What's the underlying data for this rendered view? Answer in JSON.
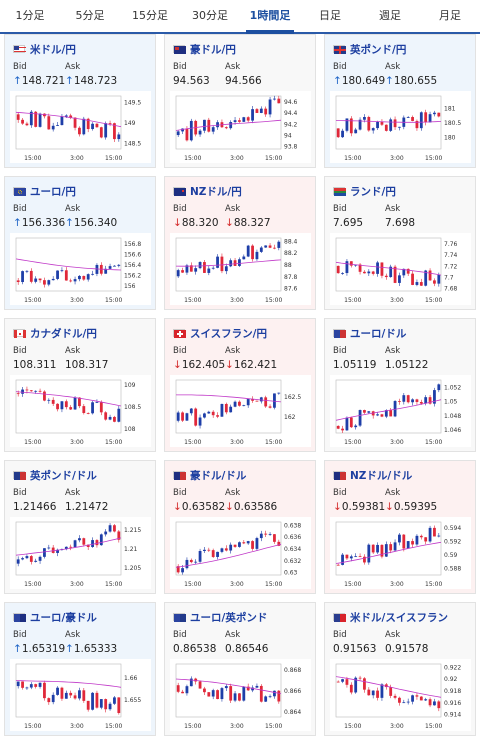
{
  "tabs": [
    {
      "label": "1分足",
      "active": false
    },
    {
      "label": "5分足",
      "active": false
    },
    {
      "label": "15分足",
      "active": false
    },
    {
      "label": "30分足",
      "active": false
    },
    {
      "label": "1時間足",
      "active": true
    },
    {
      "label": "日足",
      "active": false
    },
    {
      "label": "週足",
      "active": false
    },
    {
      "label": "月足",
      "active": false
    }
  ],
  "colors": {
    "up_candle": "#1e3ea8",
    "down_candle": "#e0283a",
    "ma_line": "#c038c8",
    "up_arrow": "#1d63c6",
    "down_arrow": "#d42a2a"
  },
  "pairs": [
    {
      "name": "米ドル/円",
      "flag": "flag-us",
      "trend": "up",
      "bid_label": "Bid",
      "ask_label": "Ask",
      "bid": "148.721",
      "ask": "148.723",
      "bid_arrow": "↑",
      "ask_arrow": "↑",
      "chart_data": {
        "type": "candlestick",
        "x_ticks": [
          "15:00",
          "3:00",
          "15:00"
        ],
        "y_ticks": [
          "149.5",
          "149",
          "148.5"
        ],
        "ylim": [
          148.35,
          149.65
        ],
        "first_close": 149.2,
        "last_close": 148.72,
        "ma_start": 149.25,
        "ma_end": 148.9
      }
    },
    {
      "name": "豪ドル/円",
      "flag": "flag-au",
      "trend": "neutral",
      "bid_label": "Bid",
      "ask_label": "Ask",
      "bid": "94.563",
      "ask": "94.566",
      "bid_arrow": "",
      "ask_arrow": "",
      "chart_data": {
        "type": "candlestick",
        "x_ticks": [
          "15:00",
          "3:00",
          "15:00"
        ],
        "y_ticks": [
          "94.6",
          "94.4",
          "94.2",
          "94",
          "93.8"
        ],
        "ylim": [
          93.75,
          94.7
        ],
        "first_close": 94.0,
        "last_close": 94.56,
        "ma_start": 94.05,
        "ma_end": 94.3
      }
    },
    {
      "name": "英ポンド/円",
      "flag": "flag-gb",
      "trend": "up",
      "bid_label": "Bid",
      "ask_label": "Ask",
      "bid": "180.649",
      "ask": "180.655",
      "bid_arrow": "↑",
      "ask_arrow": "↑",
      "chart_data": {
        "type": "candlestick",
        "x_ticks": [
          "15:00",
          "3:00",
          "15:00"
        ],
        "y_ticks": [
          "181",
          "180.5",
          "180"
        ],
        "ylim": [
          179.6,
          181.4
        ],
        "first_close": 180.3,
        "last_close": 180.65,
        "ma_start": 180.5,
        "ma_end": 180.6
      }
    },
    {
      "name": "ユーロ/円",
      "flag": "flag-eu",
      "trend": "up",
      "bid_label": "Bid",
      "ask_label": "Ask",
      "bid": "156.336",
      "ask": "156.340",
      "bid_arrow": "↑",
      "ask_arrow": "↑",
      "chart_data": {
        "type": "candlestick",
        "x_ticks": [
          "15:00",
          "3:00",
          "15:00"
        ],
        "y_ticks": [
          "156.8",
          "156.6",
          "156.4",
          "156.2",
          "156"
        ],
        "ylim": [
          155.9,
          156.9
        ],
        "first_close": 156.1,
        "last_close": 156.34,
        "ma_start": 156.5,
        "ma_end": 156.3
      }
    },
    {
      "name": "NZドル/円",
      "flag": "flag-nz",
      "trend": "down",
      "bid_label": "Bid",
      "ask_label": "Ask",
      "bid": "88.320",
      "ask": "88.327",
      "bid_arrow": "↓",
      "ask_arrow": "↓",
      "chart_data": {
        "type": "candlestick",
        "x_ticks": [
          "15:00",
          "3:00",
          "15:00"
        ],
        "y_ticks": [
          "88.4",
          "88.2",
          "88",
          "87.8",
          "87.6"
        ],
        "ylim": [
          87.55,
          88.45
        ],
        "first_close": 87.8,
        "last_close": 88.32,
        "ma_start": 88.0,
        "ma_end": 88.05
      }
    },
    {
      "name": "ランド/円",
      "flag": "flag-za",
      "trend": "neutral",
      "bid_label": "Bid",
      "ask_label": "Ask",
      "bid": "7.695",
      "ask": "7.698",
      "bid_arrow": "",
      "ask_arrow": "",
      "chart_data": {
        "type": "candlestick",
        "x_ticks": [
          "15:00",
          "3:00",
          "15:00"
        ],
        "y_ticks": [
          "7.76",
          "7.74",
          "7.72",
          "7.7",
          "7.68"
        ],
        "ylim": [
          7.675,
          7.77
        ],
        "first_close": 7.72,
        "last_close": 7.695,
        "ma_start": 7.73,
        "ma_end": 7.7
      }
    },
    {
      "name": "カナダドル/円",
      "flag": "flag-ca",
      "trend": "neutral",
      "bid_label": "Bid",
      "ask_label": "Ask",
      "bid": "108.311",
      "ask": "108.317",
      "bid_arrow": "",
      "ask_arrow": "",
      "chart_data": {
        "type": "candlestick",
        "x_ticks": [
          "15:00",
          "3:00",
          "15:00"
        ],
        "y_ticks": [
          "109",
          "108.5",
          "108"
        ],
        "ylim": [
          107.9,
          109.1
        ],
        "first_close": 108.8,
        "last_close": 108.31,
        "ma_start": 108.85,
        "ma_end": 108.5
      }
    },
    {
      "name": "スイスフラン/円",
      "flag": "flag-ch",
      "trend": "down",
      "bid_label": "Bid",
      "ask_label": "Ask",
      "bid": "162.405",
      "ask": "162.421",
      "bid_arrow": "↓",
      "ask_arrow": "↓",
      "chart_data": {
        "type": "candlestick",
        "x_ticks": [
          "15:00",
          "3:00",
          "15:00"
        ],
        "y_ticks": [
          "162.5",
          "162"
        ],
        "ylim": [
          161.6,
          162.9
        ],
        "first_close": 161.9,
        "last_close": 162.41,
        "ma_start": 162.5,
        "ma_end": 162.4
      }
    },
    {
      "name": "ユーロ/ドル",
      "flag": "flag-eu-us",
      "trend": "neutral",
      "bid_label": "Bid",
      "ask_label": "Ask",
      "bid": "1.05119",
      "ask": "1.05122",
      "bid_arrow": "",
      "ask_arrow": "",
      "chart_data": {
        "type": "candlestick",
        "x_ticks": [
          "15:00",
          "3:00",
          "15:00"
        ],
        "y_ticks": [
          "1.052",
          "1.05",
          "1.048",
          "1.046"
        ],
        "ylim": [
          1.0455,
          1.053
        ],
        "first_close": 1.0465,
        "last_close": 1.0512,
        "ma_start": 1.047,
        "ma_end": 1.0505
      }
    },
    {
      "name": "英ポンド/ドル",
      "flag": "flag-gb-us",
      "trend": "neutral",
      "bid_label": "Bid",
      "ask_label": "Ask",
      "bid": "1.21466",
      "ask": "1.21472",
      "bid_arrow": "",
      "ask_arrow": "",
      "chart_data": {
        "type": "candlestick",
        "x_ticks": [
          "15:00",
          "3:00",
          "15:00"
        ],
        "y_ticks": [
          "1.215",
          "1.21",
          "1.205"
        ],
        "ylim": [
          1.203,
          1.217
        ],
        "first_close": 1.206,
        "last_close": 1.2147,
        "ma_start": 1.208,
        "ma_end": 1.213
      }
    },
    {
      "name": "豪ドル/ドル",
      "flag": "flag-au-us",
      "trend": "down",
      "bid_label": "Bid",
      "ask_label": "Ask",
      "bid": "0.63582",
      "ask": "0.63586",
      "bid_arrow": "↓",
      "ask_arrow": "↓",
      "chart_data": {
        "type": "candlestick",
        "x_ticks": [
          "15:00",
          "3:00",
          "15:00"
        ],
        "y_ticks": [
          "0.638",
          "0.636",
          "0.634",
          "0.632",
          "0.63"
        ],
        "ylim": [
          0.6295,
          0.6385
        ],
        "first_close": 0.631,
        "last_close": 0.6358,
        "ma_start": 0.631,
        "ma_end": 0.6345
      }
    },
    {
      "name": "NZドル/ドル",
      "flag": "flag-nz-us",
      "trend": "down",
      "bid_label": "Bid",
      "ask_label": "Ask",
      "bid": "0.59381",
      "ask": "0.59395",
      "bid_arrow": "↓",
      "ask_arrow": "↓",
      "chart_data": {
        "type": "candlestick",
        "x_ticks": [
          "15:00",
          "3:00",
          "15:00"
        ],
        "y_ticks": [
          "0.594",
          "0.592",
          "0.59",
          "0.588"
        ],
        "ylim": [
          0.587,
          0.5948
        ],
        "first_close": 0.5885,
        "last_close": 0.5938,
        "ma_start": 0.589,
        "ma_end": 0.5915
      }
    },
    {
      "name": "ユーロ/豪ドル",
      "flag": "flag-eu-au",
      "trend": "up",
      "bid_label": "Bid",
      "ask_label": "Ask",
      "bid": "1.65319",
      "ask": "1.65333",
      "bid_arrow": "↑",
      "ask_arrow": "↑",
      "chart_data": {
        "type": "candlestick",
        "x_ticks": [
          "15:00",
          "3:00",
          "15:00"
        ],
        "y_ticks": [
          "1.66",
          "1.655"
        ],
        "ylim": [
          1.651,
          1.663
        ],
        "first_close": 1.658,
        "last_close": 1.6532,
        "ma_start": 1.6595,
        "ma_end": 1.6575
      }
    },
    {
      "name": "ユーロ/英ポンド",
      "flag": "flag-eu-gb",
      "trend": "neutral",
      "bid_label": "Bid",
      "ask_label": "Ask",
      "bid": "0.86538",
      "ask": "0.86546",
      "bid_arrow": "",
      "ask_arrow": "",
      "chart_data": {
        "type": "candlestick",
        "x_ticks": [
          "15:00",
          "3:00",
          "15:00"
        ],
        "y_ticks": [
          "0.868",
          "0.866",
          "0.864"
        ],
        "ylim": [
          0.8635,
          0.8685
        ],
        "first_close": 0.8665,
        "last_close": 0.8654,
        "ma_start": 0.867,
        "ma_end": 0.8658
      }
    },
    {
      "name": "米ドル/スイスフラン",
      "flag": "flag-us-ch",
      "trend": "neutral",
      "bid_label": "Bid",
      "ask_label": "Ask",
      "bid": "0.91563",
      "ask": "0.91578",
      "bid_arrow": "",
      "ask_arrow": "",
      "chart_data": {
        "type": "candlestick",
        "x_ticks": [
          "15:00",
          "3:00",
          "15:00"
        ],
        "y_ticks": [
          "0.922",
          "0.92",
          "0.918",
          "0.916",
          "0.914"
        ],
        "ylim": [
          0.9135,
          0.9225
        ],
        "first_close": 0.9195,
        "last_close": 0.9156,
        "ma_start": 0.92,
        "ma_end": 0.9172
      }
    }
  ]
}
